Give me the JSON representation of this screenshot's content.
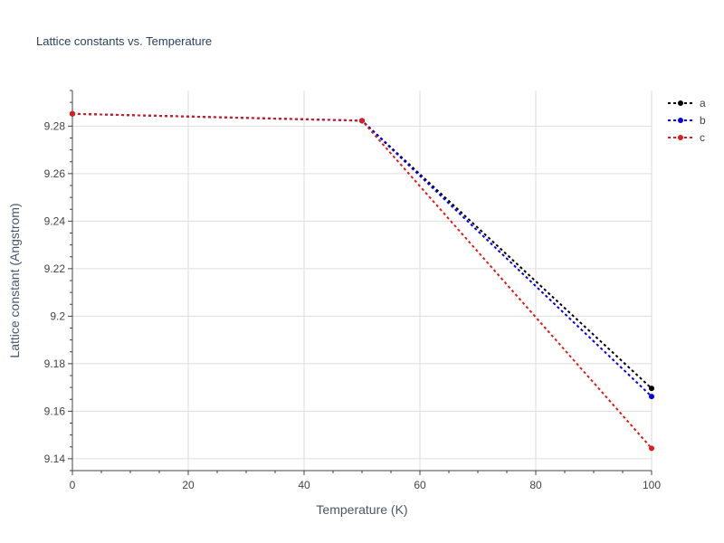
{
  "chart_data": {
    "type": "line",
    "title": "Lattice constants vs. Temperature",
    "xlabel": "Temperature (K)",
    "ylabel": "Lattice constant (Angstrom)",
    "xlim": [
      0,
      100
    ],
    "ylim": [
      9.135,
      9.295
    ],
    "xticks": [
      0,
      20,
      40,
      60,
      80,
      100
    ],
    "yticks": [
      9.14,
      9.16,
      9.18,
      9.2,
      9.22,
      9.24,
      9.26,
      9.28
    ],
    "ytick_labels": [
      "9.14",
      "9.16",
      "9.18",
      "9.2",
      "9.22",
      "9.24",
      "9.26",
      "9.28"
    ],
    "grid": true,
    "legend_position": "top-right",
    "x": [
      0,
      50,
      100
    ],
    "series": [
      {
        "name": "a",
        "color": "#000000",
        "values": [
          9.2852,
          9.2823,
          9.1696
        ]
      },
      {
        "name": "b",
        "color": "#0000ee",
        "values": [
          9.2852,
          9.2823,
          9.1662
        ]
      },
      {
        "name": "c",
        "color": "#e31a1c",
        "values": [
          9.2852,
          9.2823,
          9.1444
        ]
      }
    ]
  }
}
